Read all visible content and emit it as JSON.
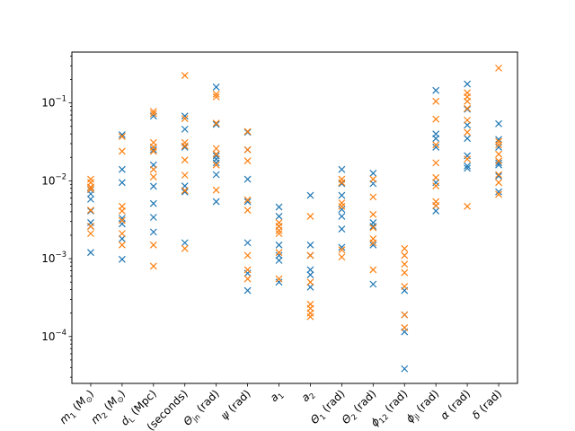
{
  "chart_data": {
    "type": "scatter",
    "title": "",
    "xlabel": "",
    "ylabel": "",
    "yscale": "log",
    "ylim": [
      2.5e-05,
      0.45
    ],
    "grid": false,
    "legend": "none",
    "marker": "x",
    "categories": [
      "m_1 (M_⊙)",
      "m_2 (M_⊙)",
      "d_L (Mpc)",
      "t_c (seconds)",
      "Θ_jn (rad)",
      "ψ (rad)",
      "a_1",
      "a_2",
      "Θ_1 (rad)",
      "Θ_2 (rad)",
      "ϕ_12 (rad)",
      "ϕ_jl (rad)",
      "α (rad)",
      "δ (rad)"
    ],
    "y_tick_labels": [
      "10^-4",
      "10^-3",
      "10^-2",
      "10^-1"
    ],
    "y_ticks": [
      0.0001,
      0.001,
      0.01,
      0.1
    ],
    "series": [
      {
        "color": "#1f77b4",
        "values": [
          [
            0.0012,
            0.0026,
            0.0029,
            0.0041,
            0.0058,
            0.0068,
            0.0077,
            0.0083
          ],
          [
            0.00098,
            0.0018,
            0.0028,
            0.0033,
            0.0095,
            0.014,
            0.039
          ],
          [
            0.0022,
            0.0034,
            0.0051,
            0.0085,
            0.016,
            0.025,
            0.027,
            0.068
          ],
          [
            0.0016,
            0.0072,
            0.0086,
            0.027,
            0.046,
            0.068
          ],
          [
            0.0054,
            0.012,
            0.017,
            0.019,
            0.021,
            0.053,
            0.16
          ],
          [
            0.00039,
            0.00065,
            0.0016,
            0.0054,
            0.0105,
            0.025,
            0.042
          ],
          [
            0.0005,
            0.00095,
            0.0011,
            0.0015,
            0.0026,
            0.0035,
            0.0046
          ],
          [
            0.00043,
            0.00062,
            0.00072,
            0.0011,
            0.0015,
            0.0065
          ],
          [
            0.0014,
            0.0024,
            0.0035,
            0.0043,
            0.0065,
            0.0092,
            0.014
          ],
          [
            0.00047,
            0.0015,
            0.0026,
            0.0029,
            0.0092,
            0.0125
          ],
          [
            3.85e-05,
            0.000115,
            0.00019,
            0.00039
          ],
          [
            0.0041,
            0.0048,
            0.0095,
            0.027,
            0.035,
            0.04,
            0.145
          ],
          [
            0.0145,
            0.0155,
            0.021,
            0.035,
            0.052,
            0.083,
            0.175
          ],
          [
            0.0072,
            0.0115,
            0.016,
            0.017,
            0.027,
            0.034,
            0.054
          ]
        ]
      },
      {
        "color": "#ff7f0e",
        "values": [
          [
            0.0021,
            0.0026,
            0.0042,
            0.0078,
            0.0083,
            0.0095,
            0.0105
          ],
          [
            0.0015,
            0.0021,
            0.0031,
            0.0041,
            0.0047,
            0.024,
            0.037
          ],
          [
            0.0008,
            0.0015,
            0.0112,
            0.014,
            0.024,
            0.027,
            0.031,
            0.073,
            0.078
          ],
          [
            0.00135,
            0.0075,
            0.0118,
            0.0185,
            0.028,
            0.031,
            0.063,
            0.225
          ],
          [
            0.0076,
            0.016,
            0.022,
            0.026,
            0.055,
            0.12,
            0.13
          ],
          [
            0.00055,
            0.00072,
            0.0011,
            0.0042,
            0.0057,
            0.018,
            0.025,
            0.043
          ],
          [
            0.00055,
            0.0012,
            0.0021,
            0.0023,
            0.0026,
            0.0029
          ],
          [
            0.00018,
            0.0002,
            0.00023,
            0.00026,
            0.0005,
            0.0011,
            0.0035
          ],
          [
            0.00105,
            0.0013,
            0.0047,
            0.0052,
            0.0095,
            0.0105
          ],
          [
            0.00072,
            0.0016,
            0.0018,
            0.0025,
            0.0037,
            0.0062,
            0.0105
          ],
          [
            0.00013,
            0.00019,
            0.00044,
            0.00066,
            0.00085,
            0.0011,
            0.00135
          ],
          [
            0.0048,
            0.0054,
            0.0086,
            0.011,
            0.017,
            0.029,
            0.062,
            0.105
          ],
          [
            0.0047,
            0.019,
            0.042,
            0.06,
            0.085,
            0.105,
            0.12,
            0.135
          ],
          [
            0.0067,
            0.0095,
            0.012,
            0.018,
            0.022,
            0.029,
            0.032,
            0.28
          ]
        ]
      }
    ]
  }
}
